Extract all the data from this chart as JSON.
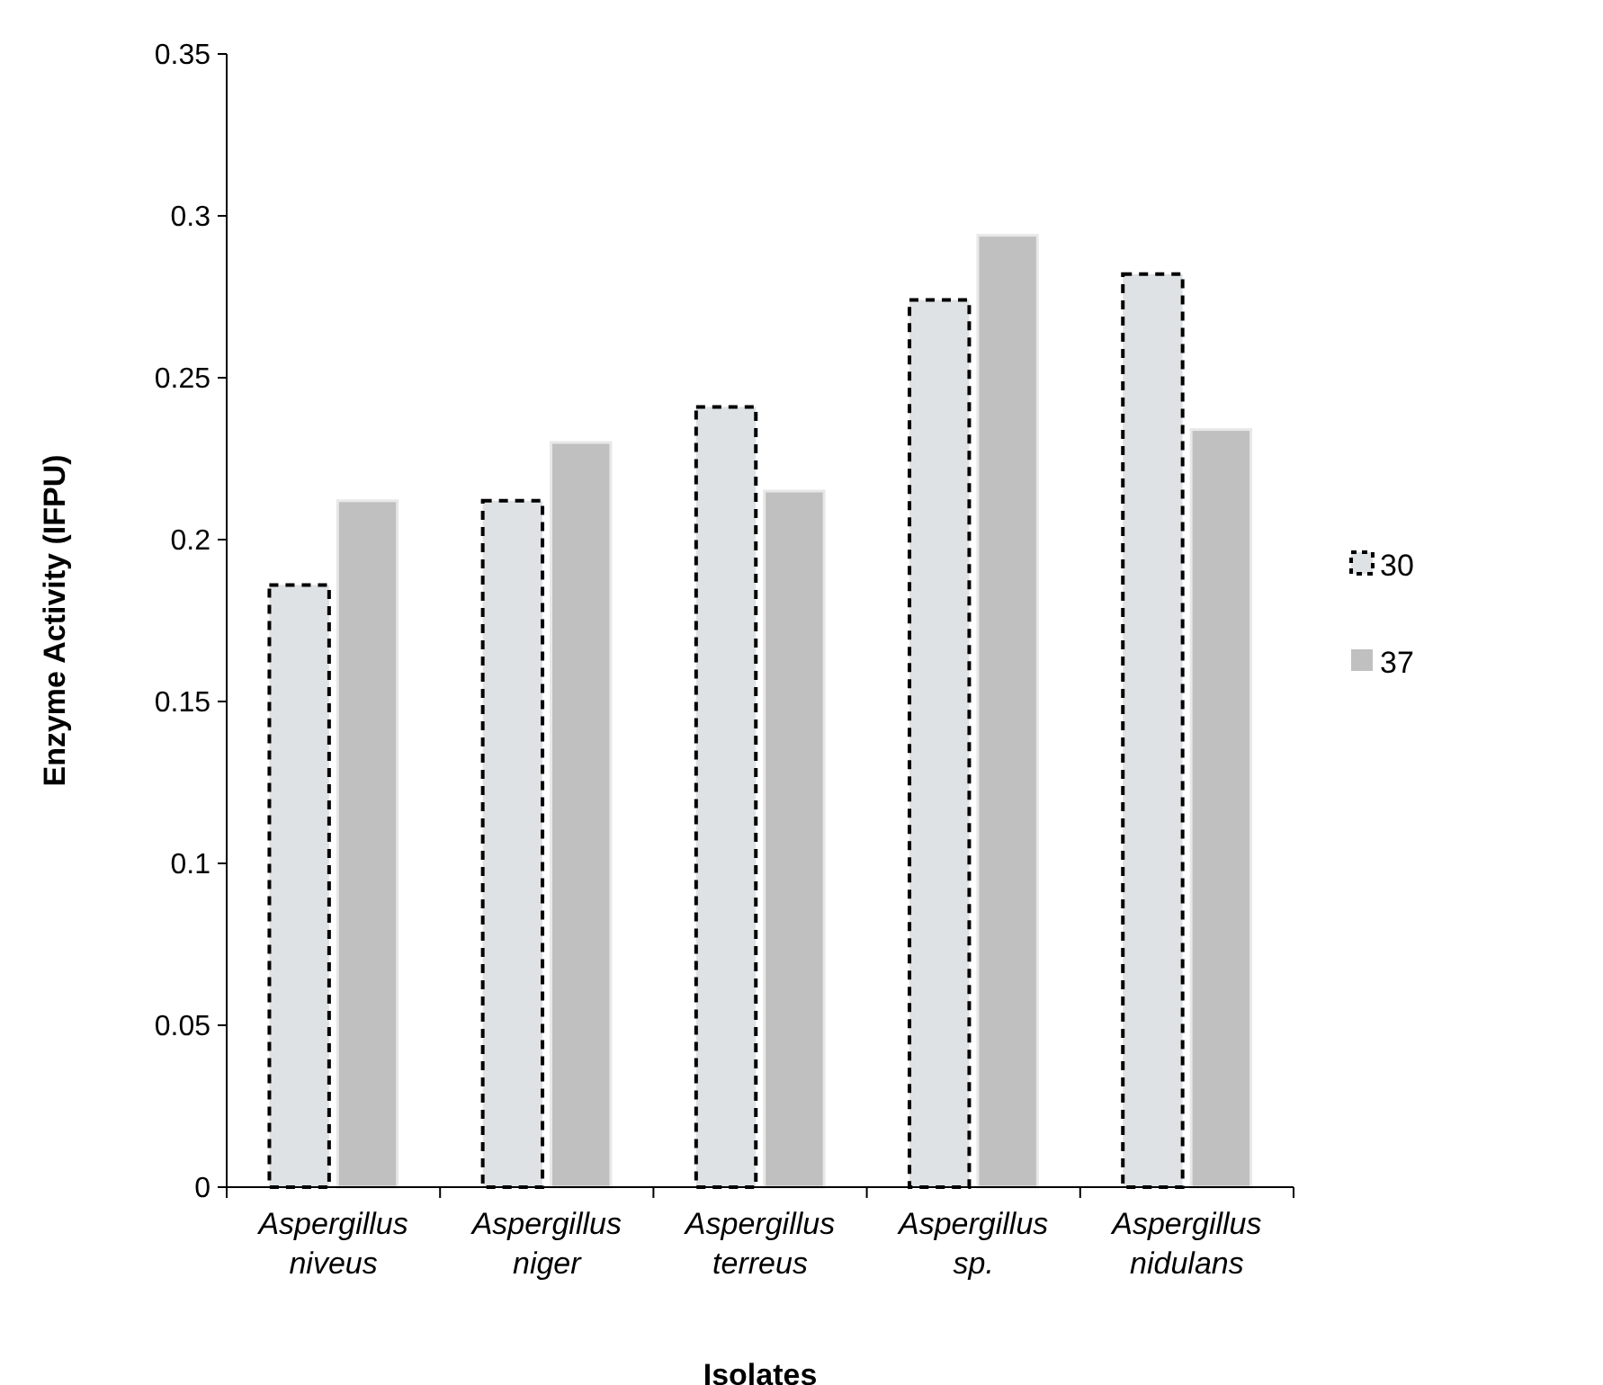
{
  "chart_data": {
    "type": "bar",
    "xlabel": "Isolates",
    "ylabel": "Enzyme Activity (IFPU)",
    "categories": [
      "Aspergillus niveus",
      "Aspergillus niger",
      "Aspergillus terreus",
      "Aspergillus sp.",
      "Aspergillus nidulans"
    ],
    "series": [
      {
        "name": "30",
        "color": "#dfe2e4",
        "values": [
          0.186,
          0.212,
          0.241,
          0.274,
          0.282
        ]
      },
      {
        "name": "37",
        "color": "#c0c0c0",
        "values": [
          0.212,
          0.23,
          0.215,
          0.294,
          0.234
        ]
      }
    ],
    "ylim": [
      0,
      0.35
    ],
    "yticks": [
      0,
      0.05,
      0.1,
      0.15,
      0.2,
      0.25,
      0.3,
      0.35
    ],
    "grid": false,
    "legend": "right"
  }
}
